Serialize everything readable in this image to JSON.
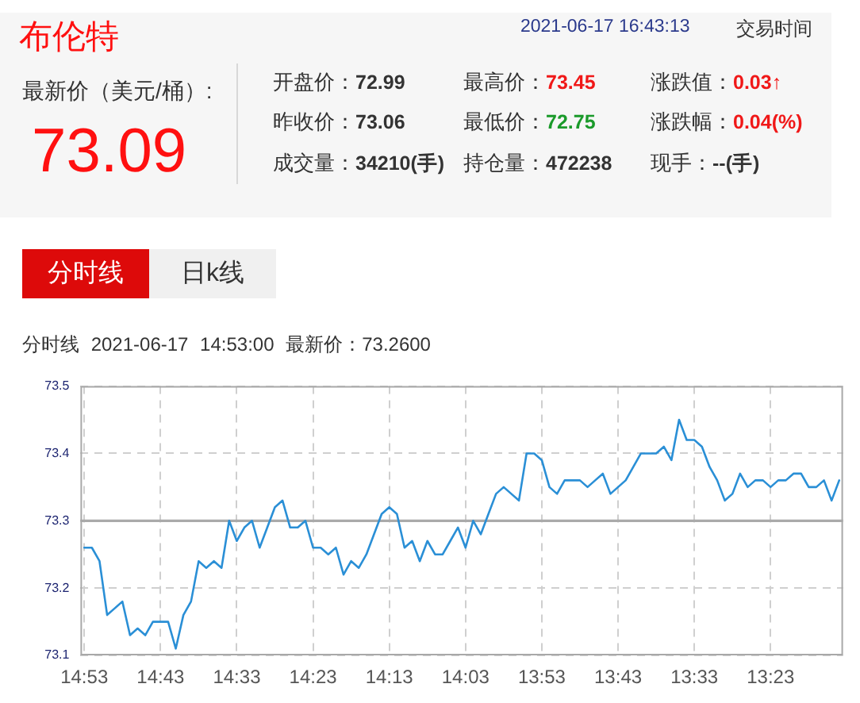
{
  "chart_data": [
    {
      "type": "other",
      "title": "布伦特",
      "annotations": [
        "2021-06-17 16:43:13",
        "交易时间",
        "最新价（美元/桶）:",
        "73.09",
        "开盘价：",
        "72.99",
        "最高价：",
        "73.45",
        "涨跌值：",
        "0.03↑",
        "昨收价：",
        "73.06",
        "最低价：",
        "72.75",
        "涨跌幅：",
        "0.04(%)",
        "成交量：",
        "34210(手)",
        "持仓量：",
        "472238",
        "现手：",
        "--(手)"
      ]
    },
    {
      "type": "line",
      "title": "分时线 2021-06-17 14:53:00 最新价：73.2600",
      "annotations": [
        "分时线",
        "日k线"
      ],
      "categories": [
        "14:53",
        null,
        null,
        null,
        null,
        null,
        null,
        null,
        null,
        null,
        "14:43",
        null,
        null,
        null,
        null,
        null,
        null,
        null,
        null,
        null,
        "14:33",
        null,
        null,
        null,
        null,
        null,
        null,
        null,
        null,
        null,
        "14:23",
        null,
        null,
        null,
        null,
        null,
        null,
        null,
        null,
        null,
        "14:13",
        null,
        null,
        null,
        null,
        null,
        null,
        null,
        null,
        null,
        "14:03",
        null,
        null,
        null,
        null,
        null,
        null,
        null,
        null,
        null,
        "13:53",
        null,
        null,
        null,
        null,
        null,
        null,
        null,
        null,
        null,
        "13:43",
        null,
        null,
        null,
        null,
        null,
        null,
        null,
        null,
        null,
        "13:33",
        null,
        null,
        null,
        null,
        null,
        null,
        null,
        null,
        null,
        "13:23",
        null,
        null,
        null,
        null,
        null,
        null,
        null,
        null,
        null
      ],
      "series": [
        {
          "color": "#2a8fd6",
          "values": [
            73.26,
            73.26,
            73.24,
            73.16,
            73.17,
            73.18,
            73.13,
            73.14,
            73.13,
            73.15,
            73.15,
            73.15,
            73.11,
            73.16,
            73.18,
            73.24,
            73.23,
            73.24,
            73.23,
            73.3,
            73.27,
            73.29,
            73.3,
            73.26,
            73.29,
            73.32,
            73.33,
            73.29,
            73.29,
            73.3,
            73.26,
            73.26,
            73.25,
            73.26,
            73.22,
            73.24,
            73.23,
            73.25,
            73.28,
            73.31,
            73.32,
            73.31,
            73.26,
            73.27,
            73.24,
            73.27,
            73.25,
            73.25,
            73.27,
            73.29,
            73.26,
            73.3,
            73.28,
            73.31,
            73.34,
            73.35,
            73.34,
            73.33,
            73.4,
            73.4,
            73.39,
            73.35,
            73.34,
            73.36,
            73.36,
            73.36,
            73.35,
            73.36,
            73.37,
            73.34,
            73.35,
            73.36,
            73.38,
            73.4,
            73.4,
            73.4,
            73.41,
            73.39,
            73.45,
            73.42,
            73.42,
            73.41,
            73.38,
            73.36,
            73.33,
            73.34,
            73.37,
            73.35,
            73.36,
            73.36,
            73.35,
            73.36,
            73.36,
            73.37,
            73.37,
            73.35,
            73.35,
            73.36,
            73.33,
            73.36
          ]
        }
      ],
      "ylim": [
        73.1,
        73.5
      ],
      "yticks": [
        73.1,
        73.2,
        73.3,
        73.4,
        73.5
      ],
      "grid": true,
      "marker": "none",
      "line_style": "solid",
      "ref_lines": [
        {
          "axis": "y",
          "value": 73.3,
          "color": "#aaaaaa",
          "line_style": "solid"
        }
      ]
    }
  ]
}
